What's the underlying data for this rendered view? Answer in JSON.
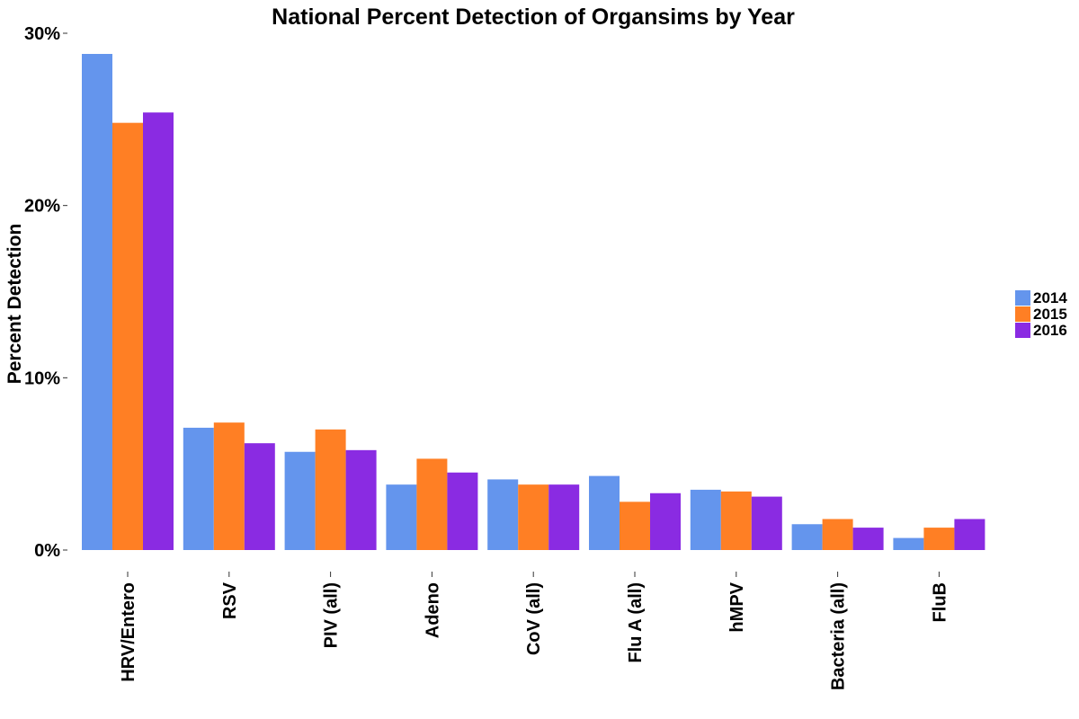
{
  "chart_data": {
    "type": "bar",
    "title": "National Percent Detection of Organsims by Year",
    "xlabel": "",
    "ylabel": "Percent Detection",
    "ylim": [
      0,
      30
    ],
    "yticks": [
      "0%",
      "10%",
      "20%",
      "30%"
    ],
    "ytick_values": [
      0,
      10,
      20,
      30
    ],
    "grid": false,
    "legend_position": "right",
    "categories": [
      "HRV/Entero",
      "RSV",
      "PIV (all)",
      "Adeno",
      "CoV (all)",
      "Flu A (all)",
      "hMPV",
      "Bacteria (all)",
      "FluB"
    ],
    "series": [
      {
        "name": "2014",
        "color": "#6495ED",
        "values": [
          28.8,
          7.1,
          5.7,
          3.8,
          4.1,
          4.3,
          3.5,
          1.5,
          0.7
        ]
      },
      {
        "name": "2015",
        "color": "#FF7F24",
        "values": [
          24.8,
          7.4,
          7.0,
          5.3,
          3.8,
          2.8,
          3.4,
          1.8,
          1.3
        ]
      },
      {
        "name": "2016",
        "color": "#8A2BE2",
        "values": [
          25.4,
          6.2,
          5.8,
          4.5,
          3.8,
          3.3,
          3.1,
          1.3,
          1.8
        ]
      }
    ]
  }
}
